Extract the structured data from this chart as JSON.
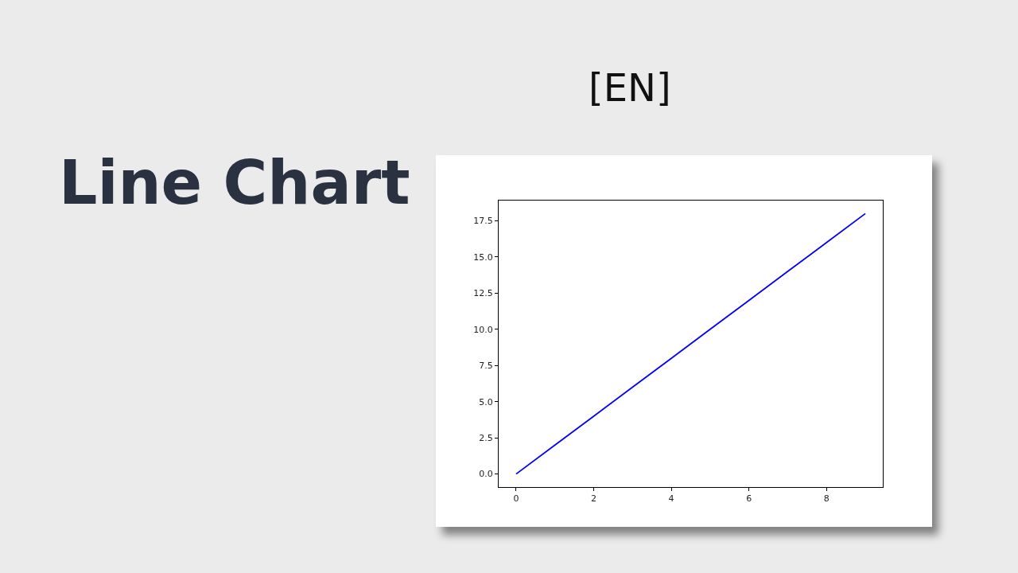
{
  "chart_data": {
    "type": "line",
    "title": "Line Chart",
    "annotations": [
      "[EN]"
    ],
    "x": [
      0,
      1,
      2,
      3,
      4,
      5,
      6,
      7,
      8,
      9
    ],
    "series": [
      {
        "color": "#0000ff",
        "values": [
          0,
          2,
          4,
          6,
          8,
          10,
          12,
          14,
          16,
          18
        ]
      }
    ],
    "xlim": [
      -0.45,
      9.45
    ],
    "xticks": [
      0,
      2,
      4,
      6,
      8
    ],
    "ylim": [
      -0.9,
      18.9
    ],
    "yticks": [
      {
        "value": 0,
        "label": "0.0"
      },
      {
        "value": 2.5,
        "label": "2.5"
      },
      {
        "value": 5,
        "label": "5.0"
      },
      {
        "value": 7.5,
        "label": "7.5"
      },
      {
        "value": 10,
        "label": "10.0"
      },
      {
        "value": 12.5,
        "label": "12.5"
      },
      {
        "value": 15,
        "label": "15.0"
      },
      {
        "value": 17.5,
        "label": "17.5"
      }
    ],
    "grid": false,
    "legend": false,
    "marker": "none",
    "line_style": "solid"
  }
}
